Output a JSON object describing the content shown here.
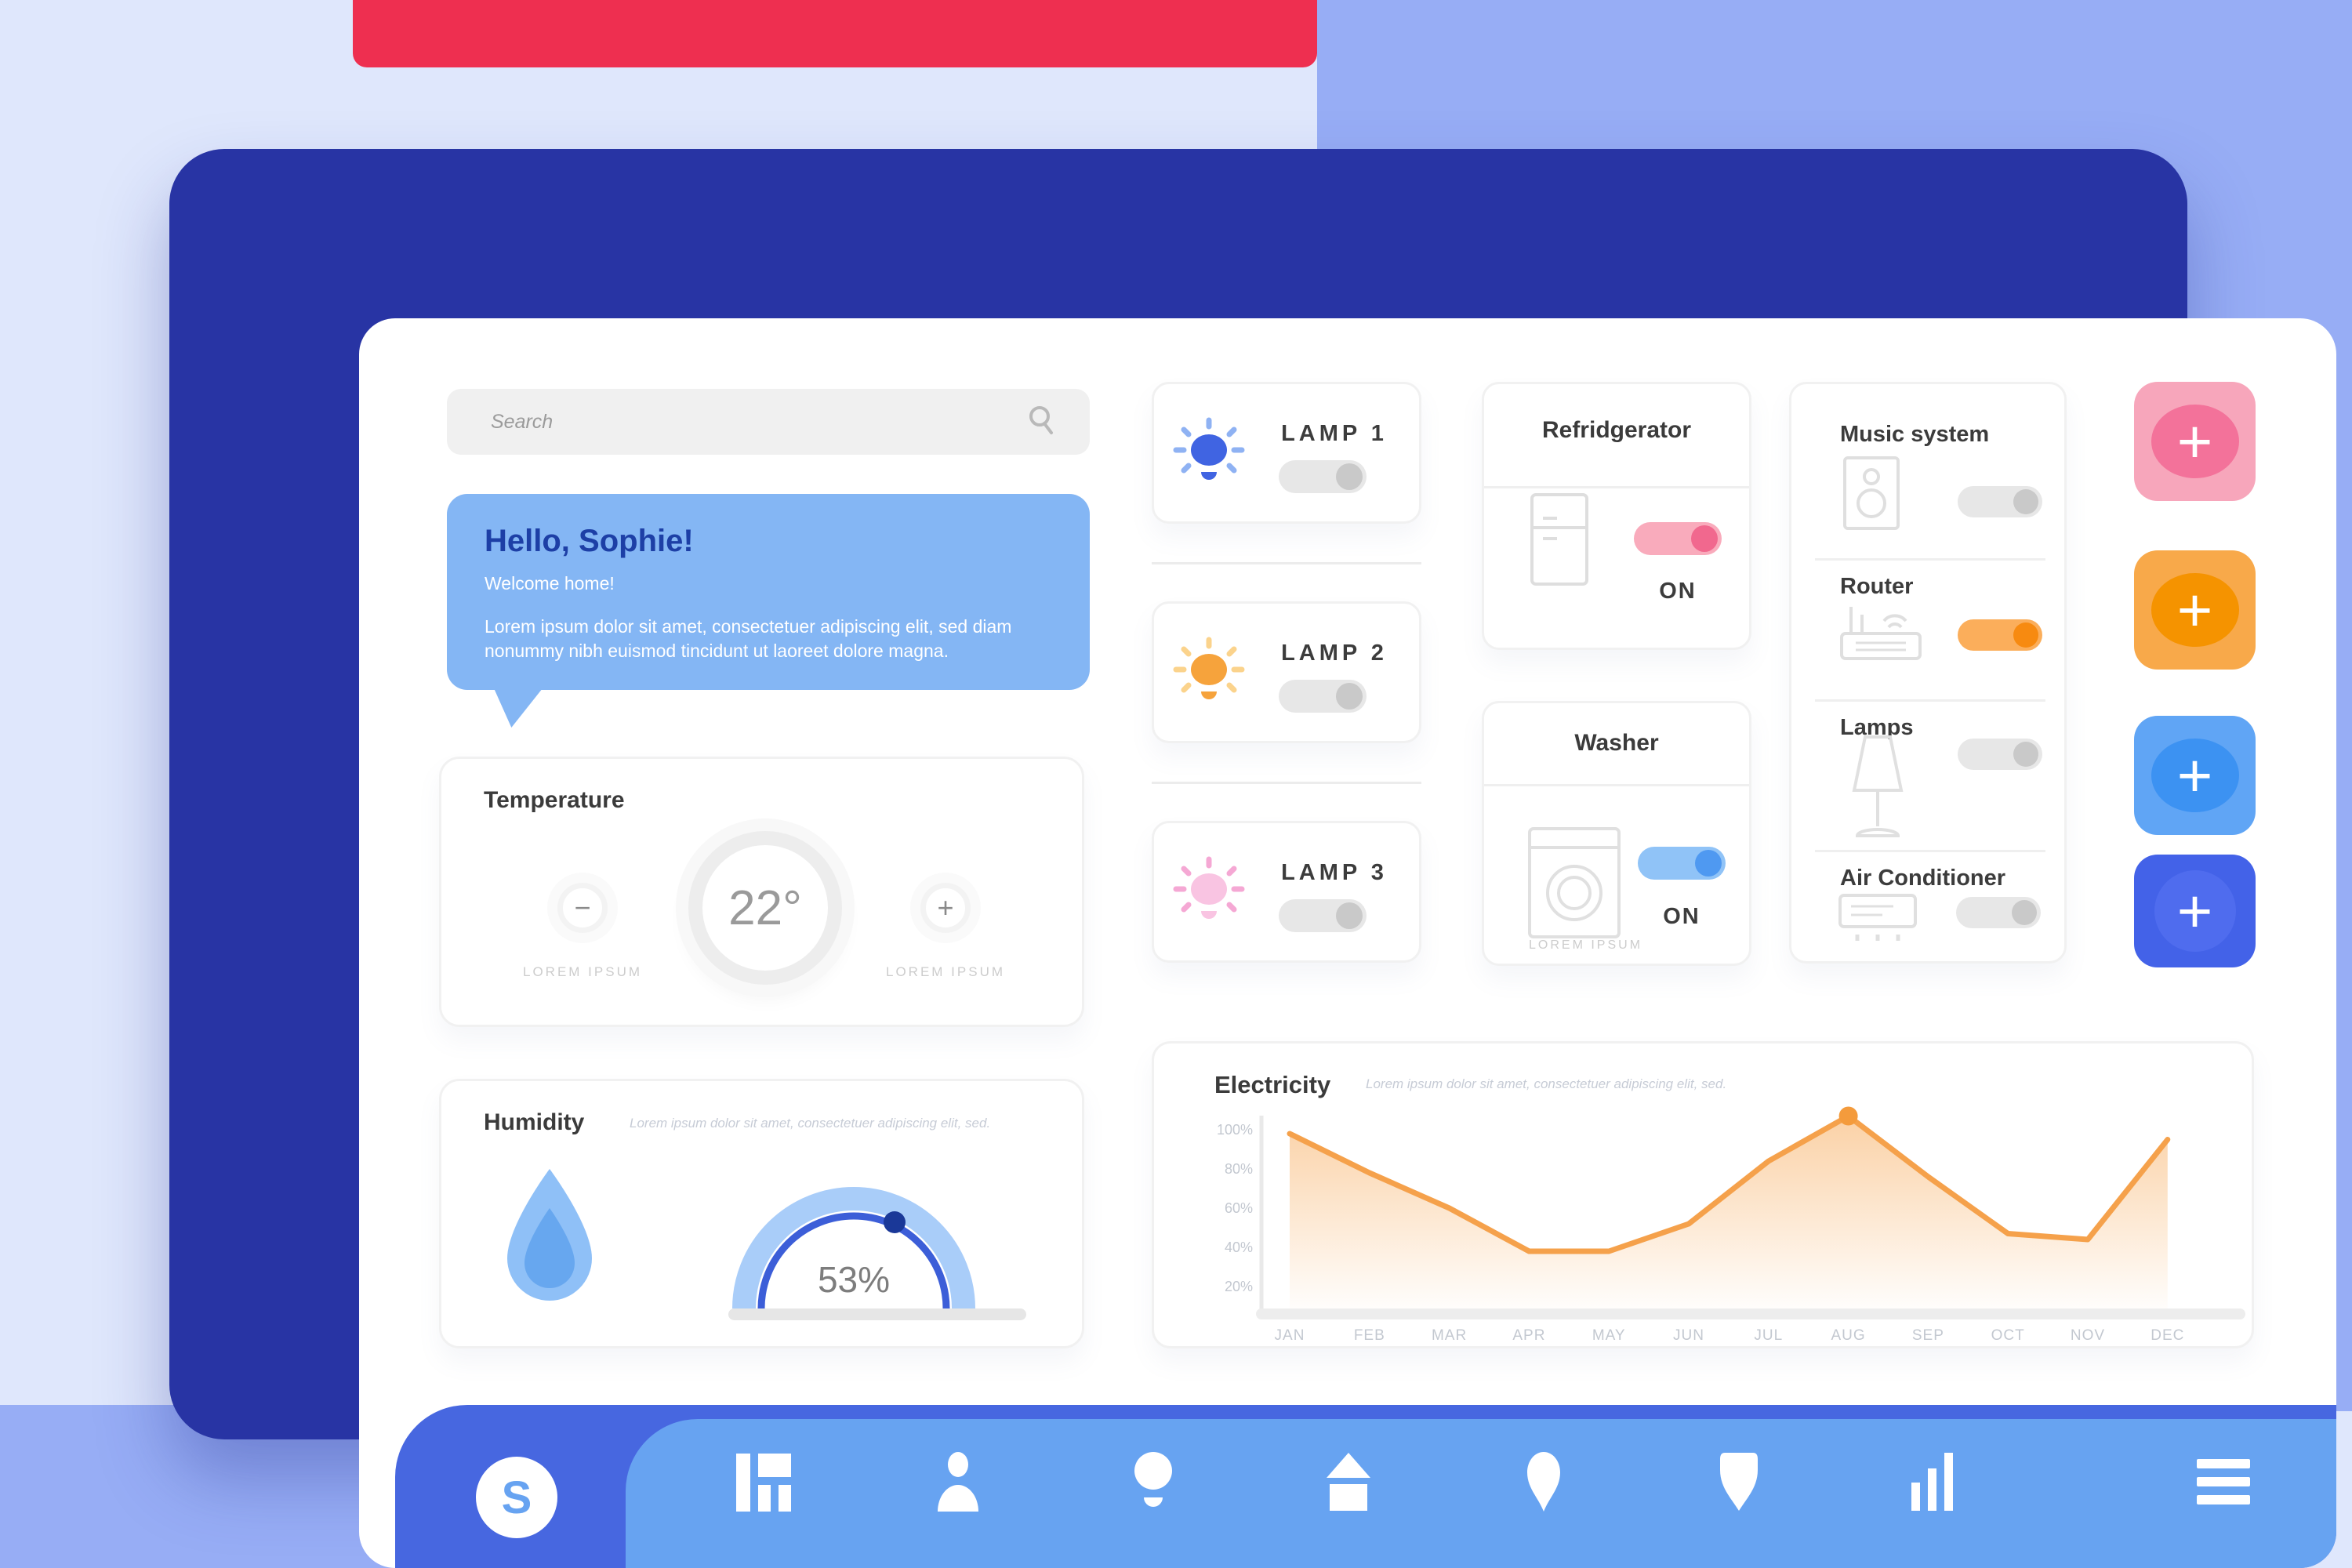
{
  "search": {
    "placeholder": "Search"
  },
  "welcome": {
    "title": "Hello, Sophie!",
    "subtitle": "Welcome home!",
    "body": "Lorem ipsum dolor sit amet, consectetuer adipiscing elit, sed diam nonummy nibh euismod tincidunt ut laoreet dolore magna."
  },
  "temperature": {
    "title": "Temperature",
    "value": "22°",
    "decrease_label": "−",
    "increase_label": "+",
    "min_caption": "LOREM IPSUM",
    "max_caption": "LOREM IPSUM"
  },
  "humidity": {
    "title": "Humidity",
    "note": "Lorem ipsum dolor sit amet, consectetuer adipiscing elit, sed.",
    "value": "53%"
  },
  "lamps": [
    {
      "label": "LAMP 1",
      "bulb_color": "#4064e2",
      "ray_color": "#8fb2f3",
      "state": "off"
    },
    {
      "label": "LAMP 2",
      "bulb_color": "#f6a33c",
      "ray_color": "#fbd38c",
      "state": "off"
    },
    {
      "label": "LAMP 3",
      "bulb_color": "#f9c4e2",
      "ray_color": "#f5a8d4",
      "state": "off"
    }
  ],
  "appliances": {
    "refrigerator": {
      "title": "Refridgerator",
      "status": "ON",
      "accent": "#f1688e"
    },
    "washer": {
      "title": "Washer",
      "status": "ON",
      "caption": "LOREM IPSUM",
      "accent": "#4f99f1"
    }
  },
  "devices": [
    {
      "label": "Music system",
      "state": "off",
      "accent": "#c9c9c9"
    },
    {
      "label": "Router",
      "state": "on",
      "accent": "#f78a10"
    },
    {
      "label": "Lamps",
      "state": "off",
      "accent": "#c9c9c9"
    },
    {
      "label": "Air Conditioner",
      "state": "off",
      "accent": "#c9c9c9"
    }
  ],
  "add_buttons": [
    {
      "label": "+",
      "color": "#f7a6bb",
      "circle_color": "#f3729a"
    },
    {
      "label": "+",
      "color": "#f8a94a",
      "circle_color": "#f59300"
    },
    {
      "label": "+",
      "color": "#60a5f5",
      "circle_color": "#3c92f2"
    },
    {
      "label": "+",
      "color": "#4362e8",
      "circle_color": "#4f6cee"
    }
  ],
  "electricity": {
    "title": "Electricity",
    "note": "Lorem ipsum dolor sit amet, consectetuer adipiscing elit, sed."
  },
  "chart_data": {
    "type": "area",
    "title": "Electricity",
    "categories": [
      "JAN",
      "FEB",
      "MAR",
      "APR",
      "MAY",
      "JUN",
      "JUL",
      "AUG",
      "SEP",
      "OCT",
      "NOV",
      "DEC"
    ],
    "values": [
      98,
      78,
      60,
      38,
      38,
      52,
      84,
      107,
      76,
      47,
      44,
      95
    ],
    "ytick_values": [
      100,
      80,
      60,
      40,
      20
    ],
    "ytick_labels": [
      "100%",
      "80%",
      "60%",
      "40%",
      "20%"
    ],
    "ylim": [
      0,
      110
    ],
    "grid": false,
    "legend": "none",
    "line_color": "#f5a14b",
    "fill_color": "#f6a34c",
    "marker": {
      "month": "AUG",
      "value": 107,
      "color": "#f49b3c"
    }
  },
  "nav": {
    "logo": "S",
    "icons": [
      "dashboard",
      "user",
      "lamp",
      "home",
      "location",
      "shield",
      "stats",
      "menu"
    ]
  },
  "colors": {
    "background_lavender": "#dfe7fc",
    "background_periwinkle": "#97adf5",
    "top_red_bar": "#ee2f50",
    "frame_navy": "#2834a4",
    "welcome_blue": "#84b6f4",
    "nav_dark_blue": "#4767e0",
    "nav_light_blue": "#67a3f1"
  }
}
